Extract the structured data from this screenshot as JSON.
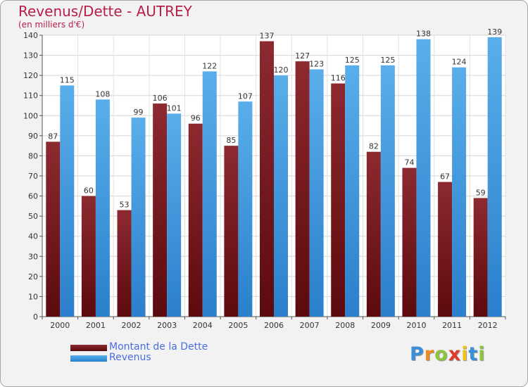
{
  "chart_data": {
    "type": "bar",
    "title": "Revenus/Dette - AUTREY",
    "subtitle": "(en milliers d'€)",
    "categories": [
      "2000",
      "2001",
      "2002",
      "2003",
      "2004",
      "2005",
      "2006",
      "2007",
      "2008",
      "2009",
      "2010",
      "2011",
      "2012"
    ],
    "series": [
      {
        "name": "Montant de la Dette",
        "values": [
          87,
          60,
          53,
          106,
          96,
          85,
          137,
          127,
          116,
          82,
          74,
          67,
          59
        ],
        "color": "#7a1f23"
      },
      {
        "name": "Revenus",
        "values": [
          115,
          108,
          99,
          101,
          122,
          107,
          120,
          123,
          125,
          125,
          138,
          124,
          139
        ],
        "color": "#4da3e6"
      }
    ],
    "ylim": [
      0,
      140
    ],
    "yticks": [
      0,
      10,
      20,
      30,
      40,
      50,
      60,
      70,
      80,
      90,
      100,
      110,
      120,
      130,
      140
    ],
    "grid": true,
    "legend_position": "bottom-left"
  },
  "logo": {
    "letters": [
      "P",
      "r",
      "o",
      "x",
      "i",
      "t",
      "i"
    ],
    "colors": [
      "#3a8fd8",
      "#f08a1e",
      "#8cc63e",
      "#e03a2e",
      "#f2c21b",
      "#3a8fd8",
      "#8cc63e"
    ]
  }
}
